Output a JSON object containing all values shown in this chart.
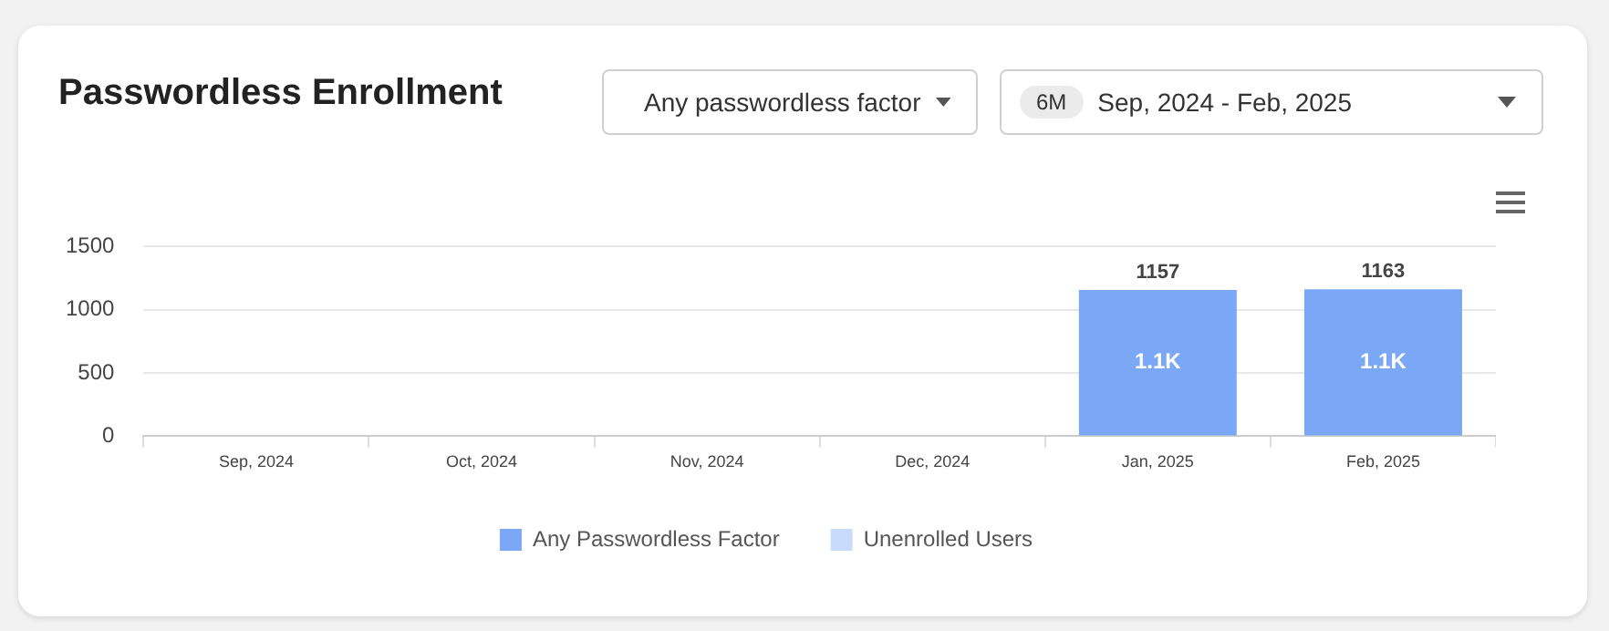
{
  "chart_data": {
    "type": "bar",
    "title": "Passwordless Enrollment",
    "categories": [
      "Sep, 2024",
      "Oct, 2024",
      "Nov, 2024",
      "Dec, 2024",
      "Jan, 2025",
      "Feb, 2025"
    ],
    "series": [
      {
        "name": "Any Passwordless Factor",
        "color": "#7ba7f7",
        "values": [
          0,
          0,
          0,
          0,
          1157,
          1163
        ]
      },
      {
        "name": "Unenrolled Users",
        "color": "#c9dbfb",
        "values": [
          0,
          0,
          0,
          0,
          0,
          0
        ]
      }
    ],
    "stacked": true,
    "totals": [
      null,
      null,
      null,
      null,
      "1157",
      "1163"
    ],
    "ylim": [
      0,
      1500
    ],
    "yticks": [
      0,
      500,
      1000,
      1500
    ],
    "grid": "y",
    "legend": "bottom",
    "annotations": [
      "Any passwordless factor",
      "6M",
      "Sep, 2024 - Feb, 2025",
      "1.1K",
      "1.1K"
    ]
  }
}
